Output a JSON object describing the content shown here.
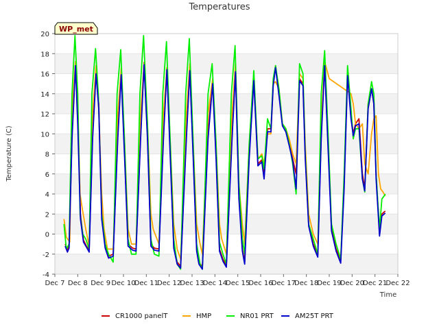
{
  "chart_data": {
    "type": "line",
    "title": "Temperatures",
    "xlabel": "Time",
    "ylabel": "Temperature (C)",
    "ylim": [
      -4,
      20
    ],
    "xlim": [
      7,
      22
    ],
    "yticks": [
      -4,
      -2,
      0,
      2,
      4,
      6,
      8,
      10,
      12,
      14,
      16,
      18,
      20
    ],
    "xticks": [
      7,
      8,
      9,
      10,
      11,
      12,
      13,
      14,
      15,
      16,
      17,
      18,
      19,
      20,
      21,
      22
    ],
    "xtick_labels": [
      "Dec 7",
      "Dec 8",
      "Dec 9",
      "Dec 10",
      "Dec 11",
      "Dec 12",
      "Dec 13",
      "Dec 14",
      "Dec 15",
      "Dec 16",
      "Dec 17",
      "Dec 18",
      "Dec 19",
      "Dec 20",
      "Dec 21",
      "Dec 22"
    ],
    "grid": "horizontal bands",
    "legend_position": "bottom",
    "badge": "WP_met",
    "series": [
      {
        "name": "CR1000 panelT",
        "color": "#cc0000",
        "x": [
          7.45,
          7.55,
          7.62,
          7.75,
          7.9,
          8.0,
          8.12,
          8.25,
          8.38,
          8.5,
          8.65,
          8.8,
          8.92,
          9.05,
          9.2,
          9.35,
          9.55,
          9.75,
          9.9,
          10.05,
          10.2,
          10.4,
          10.55,
          10.75,
          10.9,
          11.05,
          11.2,
          11.35,
          11.55,
          11.75,
          11.9,
          12.05,
          12.2,
          12.35,
          12.5,
          12.75,
          12.9,
          13.05,
          13.2,
          13.3,
          13.45,
          13.7,
          13.9,
          14.05,
          14.2,
          14.35,
          14.5,
          14.75,
          14.9,
          15.05,
          15.2,
          15.3,
          15.5,
          15.7,
          15.88,
          16.05,
          16.15,
          16.3,
          16.45,
          16.55,
          16.65,
          16.8,
          16.95,
          17.1,
          17.25,
          17.4,
          17.55,
          17.7,
          17.85,
          17.95,
          18.1,
          18.3,
          18.5,
          18.65,
          18.8,
          18.95,
          19.1,
          19.3,
          19.5,
          19.65,
          19.8,
          19.95,
          20.05,
          20.15,
          20.3,
          20.45,
          20.55,
          20.7,
          20.85,
          20.95,
          21.05,
          21.2,
          21.3,
          21.4,
          21.45
        ],
        "y": [
          -1.0,
          -1.6,
          -1.2,
          10.0,
          16.9,
          12.0,
          2.0,
          -0.6,
          -1.2,
          -1.6,
          10.0,
          16.2,
          13.0,
          2.0,
          -1.2,
          -2.2,
          -2.0,
          10.0,
          16.2,
          8.0,
          -1.0,
          -1.4,
          -1.5,
          10.0,
          17.1,
          10.0,
          -1.0,
          -1.4,
          -1.5,
          10.0,
          16.6,
          8.0,
          -1.2,
          -2.8,
          -3.2,
          10.0,
          16.5,
          8.0,
          -1.5,
          -2.8,
          -3.3,
          10.0,
          15.4,
          8.0,
          -1.5,
          -2.5,
          -3.1,
          10.0,
          16.4,
          4.0,
          -1.5,
          -2.8,
          8.0,
          15.5,
          7.0,
          7.4,
          6.0,
          10.5,
          10.5,
          15.0,
          16.8,
          14.0,
          11.0,
          10.5,
          9.0,
          7.5,
          6.0,
          15.5,
          15.0,
          8.0,
          1.0,
          -1.0,
          -2.0,
          10.0,
          17.0,
          9.0,
          0.5,
          -1.5,
          -2.6,
          5.0,
          16.0,
          12.0,
          10.0,
          11.0,
          11.5,
          6.0,
          4.5,
          13.0,
          14.5,
          13.0,
          6.0,
          0.0,
          2.0,
          2.2,
          2.3
        ]
      },
      {
        "name": "HMP",
        "color": "#ffa500",
        "x": [
          7.4,
          7.5,
          7.65,
          7.75,
          7.9,
          8.0,
          8.1,
          8.2,
          8.35,
          8.5,
          8.65,
          8.8,
          8.9,
          9.05,
          9.15,
          9.3,
          9.55,
          9.75,
          9.9,
          10.05,
          10.2,
          10.35,
          10.55,
          10.75,
          10.9,
          11.05,
          11.2,
          11.3,
          11.55,
          11.75,
          11.9,
          12.05,
          12.2,
          12.35,
          12.5,
          12.75,
          12.9,
          13.05,
          13.2,
          13.35,
          13.45,
          13.7,
          13.9,
          14.05,
          14.2,
          14.3,
          14.5,
          14.75,
          14.9,
          15.05,
          15.2,
          15.3,
          15.5,
          15.7,
          15.88,
          16.05,
          16.15,
          16.3,
          16.45,
          16.55,
          16.65,
          16.8,
          16.95,
          17.1,
          17.25,
          17.4,
          17.55,
          17.7,
          17.85,
          17.95,
          18.1,
          18.3,
          18.5,
          18.65,
          18.8,
          19.0,
          19.95,
          20.05,
          20.15,
          20.3,
          20.45,
          20.55,
          20.7,
          20.85,
          20.95,
          21.05,
          21.15,
          21.25,
          21.35,
          21.45
        ],
        "y": [
          1.5,
          -0.3,
          -0.8,
          12.0,
          17.2,
          13.0,
          4.0,
          2.5,
          0.5,
          -1.2,
          12.0,
          16.8,
          13.5,
          4.0,
          0.5,
          -1.5,
          -1.5,
          12.0,
          16.5,
          9.0,
          0.5,
          -1.0,
          -1.0,
          12.0,
          17.0,
          11.0,
          2.0,
          0.5,
          -1.0,
          12.0,
          16.6,
          9.0,
          1.0,
          -1.5,
          -2.5,
          12.0,
          17.0,
          9.0,
          1.0,
          -1.0,
          -2.0,
          12.0,
          15.5,
          9.0,
          1.0,
          -0.5,
          -2.0,
          12.0,
          17.0,
          5.0,
          1.0,
          -1.0,
          9.0,
          15.8,
          7.5,
          8.0,
          7.0,
          10.0,
          10.0,
          15.0,
          15.2,
          14.5,
          11.0,
          10.5,
          9.5,
          8.0,
          7.0,
          16.0,
          15.5,
          9.0,
          2.0,
          0.0,
          -1.0,
          11.0,
          17.2,
          15.5,
          14.0,
          13.0,
          11.0,
          10.5,
          11.0,
          7.0,
          6.0,
          10.0,
          11.5,
          11.8,
          6.0,
          4.5,
          4.2,
          3.8
        ]
      },
      {
        "name": "NR01 PRT",
        "color": "#00ee00",
        "x": [
          7.4,
          7.5,
          7.62,
          7.75,
          7.88,
          8.0,
          8.1,
          8.22,
          8.35,
          8.5,
          8.62,
          8.78,
          8.9,
          9.05,
          9.2,
          9.35,
          9.55,
          9.72,
          9.88,
          10.05,
          10.2,
          10.35,
          10.55,
          10.72,
          10.88,
          11.05,
          11.2,
          11.35,
          11.55,
          11.72,
          11.88,
          12.05,
          12.2,
          12.35,
          12.5,
          12.72,
          12.88,
          13.05,
          13.2,
          13.35,
          13.45,
          13.7,
          13.88,
          14.05,
          14.2,
          14.35,
          14.5,
          14.72,
          14.88,
          15.05,
          15.2,
          15.3,
          15.5,
          15.7,
          15.88,
          16.05,
          16.15,
          16.3,
          16.45,
          16.55,
          16.65,
          16.8,
          16.95,
          17.1,
          17.25,
          17.4,
          17.55,
          17.7,
          17.85,
          17.95,
          18.1,
          18.3,
          18.5,
          18.65,
          18.8,
          18.95,
          19.1,
          19.3,
          19.5,
          19.65,
          19.8,
          19.95,
          20.05,
          20.15,
          20.3,
          20.45,
          20.55,
          20.7,
          20.85,
          20.95,
          21.05,
          21.2,
          21.3,
          21.4,
          21.45
        ],
        "y": [
          1.0,
          -1.5,
          -1.0,
          14.0,
          19.8,
          14.0,
          2.0,
          0.0,
          -0.5,
          -1.5,
          14.0,
          18.5,
          14.0,
          2.0,
          -1.0,
          -2.0,
          -2.8,
          14.0,
          18.4,
          9.0,
          -0.5,
          -2.0,
          -2.0,
          14.0,
          19.8,
          11.0,
          -0.5,
          -2.0,
          -2.2,
          14.0,
          19.2,
          9.0,
          -0.5,
          -3.0,
          -3.5,
          14.0,
          19.5,
          9.0,
          -1.0,
          -3.0,
          -3.5,
          14.0,
          17.0,
          9.0,
          -0.8,
          -2.0,
          -3.0,
          14.0,
          18.8,
          5.0,
          -0.5,
          -2.0,
          9.0,
          16.3,
          7.5,
          7.8,
          6.5,
          11.5,
          10.5,
          15.5,
          16.8,
          14.5,
          11.0,
          10.5,
          9.0,
          7.0,
          4.0,
          17.0,
          16.0,
          8.0,
          1.0,
          -0.5,
          -2.0,
          14.0,
          18.3,
          10.0,
          1.0,
          -1.0,
          -2.5,
          6.0,
          16.8,
          12.5,
          9.5,
          10.5,
          10.5,
          5.5,
          4.2,
          13.0,
          15.2,
          14.0,
          6.0,
          0.5,
          3.5,
          3.8,
          4.0
        ]
      },
      {
        "name": "AM25T PRT",
        "color": "#0000cc",
        "x": [
          7.45,
          7.55,
          7.62,
          7.75,
          7.9,
          8.0,
          8.12,
          8.25,
          8.38,
          8.5,
          8.65,
          8.8,
          8.92,
          9.05,
          9.2,
          9.35,
          9.55,
          9.75,
          9.9,
          10.05,
          10.2,
          10.4,
          10.55,
          10.75,
          10.9,
          11.05,
          11.2,
          11.35,
          11.55,
          11.75,
          11.9,
          12.05,
          12.2,
          12.35,
          12.5,
          12.75,
          12.9,
          13.05,
          13.2,
          13.3,
          13.45,
          13.7,
          13.9,
          14.05,
          14.2,
          14.35,
          14.5,
          14.75,
          14.9,
          15.05,
          15.2,
          15.3,
          15.5,
          15.7,
          15.88,
          16.05,
          16.15,
          16.3,
          16.45,
          16.55,
          16.65,
          16.8,
          16.95,
          17.1,
          17.25,
          17.4,
          17.55,
          17.7,
          17.85,
          17.95,
          18.1,
          18.3,
          18.5,
          18.65,
          18.8,
          18.95,
          19.1,
          19.3,
          19.5,
          19.65,
          19.8,
          19.95,
          20.05,
          20.15,
          20.3,
          20.45,
          20.55,
          20.7,
          20.85,
          20.95,
          21.05,
          21.2,
          21.3,
          21.4,
          21.45
        ],
        "y": [
          -1.2,
          -1.8,
          -1.4,
          9.5,
          16.8,
          11.0,
          1.5,
          -0.8,
          -1.3,
          -1.8,
          9.5,
          16.0,
          12.5,
          1.5,
          -1.4,
          -2.4,
          -2.2,
          9.5,
          15.9,
          7.5,
          -1.2,
          -1.6,
          -1.7,
          9.5,
          16.9,
          9.5,
          -1.2,
          -1.6,
          -1.7,
          9.5,
          16.4,
          7.5,
          -1.4,
          -3.0,
          -3.4,
          9.5,
          16.3,
          7.5,
          -1.7,
          -3.0,
          -3.5,
          9.5,
          15.0,
          7.5,
          -1.7,
          -2.7,
          -3.3,
          9.5,
          16.2,
          3.5,
          -1.7,
          -3.0,
          7.5,
          15.3,
          6.8,
          7.2,
          5.5,
          10.2,
          10.2,
          14.8,
          16.6,
          13.8,
          10.8,
          10.2,
          8.8,
          7.3,
          4.5,
          15.3,
          14.8,
          7.5,
          0.8,
          -1.2,
          -2.3,
          9.5,
          16.8,
          8.5,
          0.3,
          -1.7,
          -2.9,
          4.5,
          15.8,
          11.5,
          9.8,
          10.8,
          11.0,
          5.5,
          4.3,
          12.5,
          14.5,
          13.0,
          5.5,
          -0.2,
          1.8,
          2.0,
          2.1
        ]
      }
    ]
  }
}
